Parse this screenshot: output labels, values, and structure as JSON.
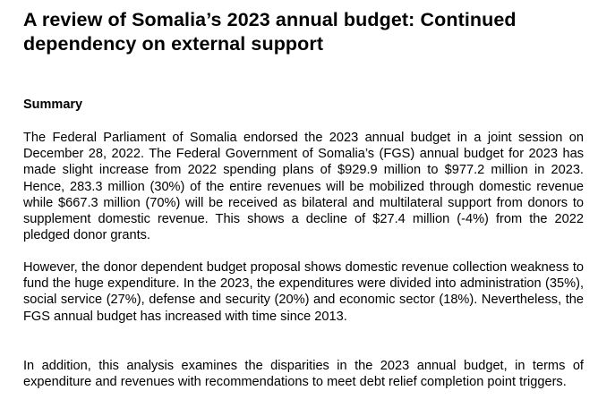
{
  "document": {
    "title": "A review of Somalia’s 2023 annual budget: Continued dependency on external support",
    "summary_heading": "Summary",
    "paragraphs": [
      "The Federal Parliament of Somalia endorsed the 2023 annual budget in a joint session on December 28, 2022. The Federal Government of Somalia’s (FGS) annual budget for 2023 has made slight increase from 2022 spending plans of $929.9 million to $977.2 million in 2023. Hence, 283.3 million (30%) of the entire revenues will be mobilized through domestic revenue while $667.3 million (70%) will be received as bilateral and multilateral support from donors to supplement domestic revenue. This shows a decline of $27.4 million (-4%) from the 2022 pledged donor grants.",
      "However, the donor dependent budget proposal shows domestic revenue collection weakness to fund the huge expenditure. In the 2023, the expenditures were divided into administration (35%), social service (27%), defense and security (20%) and economic sector (18%). Nevertheless, the FGS annual budget has increased with time since 2013.",
      "In addition, this analysis examines the disparities in the 2023 annual budget, in terms of expenditure and revenues with recommendations to meet debt relief completion point triggers."
    ]
  }
}
